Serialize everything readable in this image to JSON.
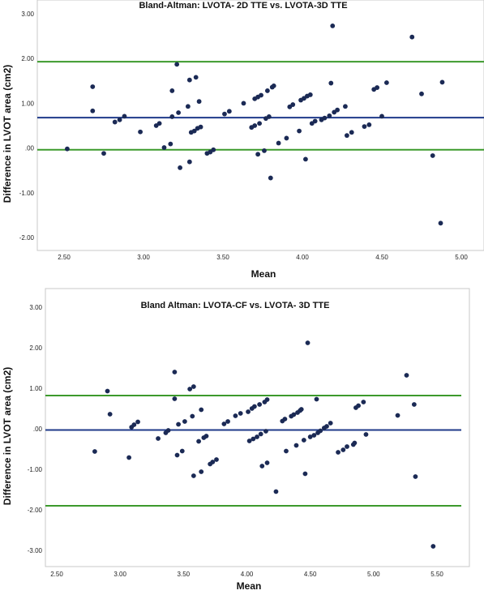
{
  "chart_data": [
    {
      "type": "scatter",
      "title": "Bland-Altman: LVOTA- 2D TTE vs. LVOTA-3D TTE",
      "xlabel": "Mean",
      "ylabel": "Difference in LVOT area (cm2)",
      "xlim": [
        2.4,
        5.15
      ],
      "ylim": [
        -2.3,
        3.2
      ],
      "xticks": [
        "2.50",
        "3.00",
        "3.50",
        "4.00",
        "4.50",
        "5.00"
      ],
      "xtick_values": [
        2.5,
        3.0,
        3.5,
        4.0,
        4.5,
        5.0
      ],
      "yticks": [
        "3.00",
        "2.00",
        "1.00",
        ".00",
        "-1.00",
        "-2.00"
      ],
      "ytick_values": [
        3.0,
        2.0,
        1.0,
        0.0,
        -1.0,
        -2.0
      ],
      "grid": false,
      "point_color": "#1b2a55",
      "lines": [
        {
          "y": 1.93,
          "color": "#3c9a2c"
        },
        {
          "y": 0.68,
          "color": "#1f3a8a"
        },
        {
          "y": -0.04,
          "color": "#3c9a2c"
        }
      ],
      "points": [
        [
          2.52,
          -0.02
        ],
        [
          2.68,
          1.37
        ],
        [
          2.68,
          0.83
        ],
        [
          2.75,
          -0.12
        ],
        [
          2.82,
          0.58
        ],
        [
          2.85,
          0.63
        ],
        [
          2.88,
          0.71
        ],
        [
          2.98,
          0.36
        ],
        [
          3.08,
          0.5
        ],
        [
          3.1,
          0.55
        ],
        [
          3.13,
          0.01
        ],
        [
          3.17,
          0.09
        ],
        [
          3.18,
          1.28
        ],
        [
          3.18,
          0.7
        ],
        [
          3.21,
          1.87
        ],
        [
          3.22,
          0.79
        ],
        [
          3.23,
          -0.44
        ],
        [
          3.28,
          0.93
        ],
        [
          3.29,
          1.52
        ],
        [
          3.29,
          -0.31
        ],
        [
          3.3,
          0.35
        ],
        [
          3.32,
          0.38
        ],
        [
          3.33,
          1.58
        ],
        [
          3.34,
          0.44
        ],
        [
          3.35,
          1.04
        ],
        [
          3.36,
          0.47
        ],
        [
          3.4,
          -0.12
        ],
        [
          3.42,
          -0.09
        ],
        [
          3.44,
          -0.04
        ],
        [
          3.51,
          0.76
        ],
        [
          3.54,
          0.82
        ],
        [
          3.63,
          1.0
        ],
        [
          3.68,
          0.46
        ],
        [
          3.7,
          1.1
        ],
        [
          3.7,
          0.5
        ],
        [
          3.72,
          1.14
        ],
        [
          3.72,
          -0.14
        ],
        [
          3.73,
          0.55
        ],
        [
          3.74,
          1.18
        ],
        [
          3.76,
          -0.06
        ],
        [
          3.77,
          0.66
        ],
        [
          3.78,
          1.28
        ],
        [
          3.79,
          0.7
        ],
        [
          3.8,
          -0.67
        ],
        [
          3.81,
          1.36
        ],
        [
          3.82,
          1.39
        ],
        [
          3.85,
          0.11
        ],
        [
          3.9,
          0.22
        ],
        [
          3.92,
          0.92
        ],
        [
          3.94,
          0.97
        ],
        [
          3.98,
          0.38
        ],
        [
          3.99,
          1.07
        ],
        [
          4.01,
          1.11
        ],
        [
          4.02,
          -0.25
        ],
        [
          4.03,
          1.16
        ],
        [
          4.05,
          1.19
        ],
        [
          4.06,
          0.55
        ],
        [
          4.08,
          0.6
        ],
        [
          4.12,
          0.63
        ],
        [
          4.14,
          0.67
        ],
        [
          4.17,
          0.72
        ],
        [
          4.18,
          1.45
        ],
        [
          4.19,
          2.73
        ],
        [
          4.2,
          0.8
        ],
        [
          4.22,
          0.85
        ],
        [
          4.27,
          0.93
        ],
        [
          4.28,
          0.28
        ],
        [
          4.31,
          0.35
        ],
        [
          4.39,
          0.48
        ],
        [
          4.42,
          0.52
        ],
        [
          4.45,
          1.31
        ],
        [
          4.47,
          1.35
        ],
        [
          4.5,
          0.71
        ],
        [
          4.53,
          1.46
        ],
        [
          4.69,
          2.48
        ],
        [
          4.75,
          1.21
        ],
        [
          4.82,
          -0.17
        ],
        [
          4.87,
          -1.68
        ],
        [
          4.88,
          1.47
        ]
      ]
    },
    {
      "type": "scatter",
      "title": "Bland Altman: LVOTA-CF vs. LVOTA- 3D TTE",
      "xlabel": "Mean",
      "ylabel": "Difference in LVOT area (cm2)",
      "xlim": [
        2.35,
        5.65
      ],
      "ylim": [
        -3.2,
        3.25
      ],
      "xticks": [
        "2.50",
        "3.00",
        "3.50",
        "4.00",
        "4.50",
        "5.00",
        "5.50"
      ],
      "xtick_values": [
        2.5,
        3.0,
        3.5,
        4.0,
        4.5,
        5.0,
        5.5
      ],
      "yticks": [
        "3.00",
        "2.00",
        "1.00",
        ".00",
        "-1.00",
        "-2.00",
        "-3.00"
      ],
      "ytick_values": [
        3.0,
        2.0,
        1.0,
        0.0,
        -1.0,
        -2.0,
        -3.0
      ],
      "grid": false,
      "point_color": "#1b2a55",
      "lines": [
        {
          "y": 0.82,
          "color": "#3c9a2c"
        },
        {
          "y": -0.03,
          "color": "#1f3a8a"
        },
        {
          "y": -1.9,
          "color": "#3c9a2c"
        }
      ],
      "points": [
        [
          2.8,
          -0.56
        ],
        [
          2.9,
          0.93
        ],
        [
          2.92,
          0.36
        ],
        [
          3.07,
          -0.71
        ],
        [
          3.09,
          0.04
        ],
        [
          3.11,
          0.1
        ],
        [
          3.14,
          0.17
        ],
        [
          3.3,
          -0.24
        ],
        [
          3.36,
          -0.1
        ],
        [
          3.38,
          -0.04
        ],
        [
          3.43,
          1.4
        ],
        [
          3.43,
          0.74
        ],
        [
          3.45,
          -0.65
        ],
        [
          3.46,
          0.11
        ],
        [
          3.49,
          -0.55
        ],
        [
          3.51,
          0.18
        ],
        [
          3.55,
          0.98
        ],
        [
          3.57,
          0.31
        ],
        [
          3.58,
          1.04
        ],
        [
          3.58,
          -1.16
        ],
        [
          3.62,
          -0.31
        ],
        [
          3.64,
          -1.06
        ],
        [
          3.64,
          0.47
        ],
        [
          3.66,
          -0.22
        ],
        [
          3.68,
          -0.18
        ],
        [
          3.71,
          -0.87
        ],
        [
          3.73,
          -0.82
        ],
        [
          3.76,
          -0.76
        ],
        [
          3.82,
          0.12
        ],
        [
          3.85,
          0.18
        ],
        [
          3.91,
          0.32
        ],
        [
          3.95,
          0.38
        ],
        [
          4.01,
          0.42
        ],
        [
          4.02,
          -0.3
        ],
        [
          4.04,
          0.5
        ],
        [
          4.05,
          -0.25
        ],
        [
          4.06,
          0.55
        ],
        [
          4.08,
          -0.2
        ],
        [
          4.1,
          0.6
        ],
        [
          4.11,
          -0.13
        ],
        [
          4.12,
          -0.92
        ],
        [
          4.14,
          0.66
        ],
        [
          4.15,
          -0.06
        ],
        [
          4.16,
          0.72
        ],
        [
          4.16,
          -0.84
        ],
        [
          4.23,
          -1.55
        ],
        [
          4.28,
          0.19
        ],
        [
          4.3,
          0.24
        ],
        [
          4.31,
          -0.55
        ],
        [
          4.35,
          0.31
        ],
        [
          4.37,
          0.35
        ],
        [
          4.39,
          -0.41
        ],
        [
          4.4,
          0.4
        ],
        [
          4.42,
          0.45
        ],
        [
          4.43,
          0.48
        ],
        [
          4.45,
          -0.28
        ],
        [
          4.46,
          -1.11
        ],
        [
          4.48,
          2.12
        ],
        [
          4.5,
          -0.2
        ],
        [
          4.53,
          -0.16
        ],
        [
          4.55,
          0.73
        ],
        [
          4.56,
          -0.1
        ],
        [
          4.58,
          -0.05
        ],
        [
          4.61,
          0.02
        ],
        [
          4.63,
          0.06
        ],
        [
          4.66,
          0.14
        ],
        [
          4.72,
          -0.58
        ],
        [
          4.76,
          -0.52
        ],
        [
          4.79,
          -0.44
        ],
        [
          4.84,
          -0.39
        ],
        [
          4.85,
          -0.35
        ],
        [
          4.86,
          0.52
        ],
        [
          4.88,
          0.57
        ],
        [
          4.92,
          0.66
        ],
        [
          4.94,
          -0.14
        ],
        [
          5.19,
          0.33
        ],
        [
          5.26,
          1.32
        ],
        [
          5.32,
          0.6
        ],
        [
          5.33,
          -1.18
        ],
        [
          5.47,
          -2.9
        ]
      ]
    }
  ]
}
